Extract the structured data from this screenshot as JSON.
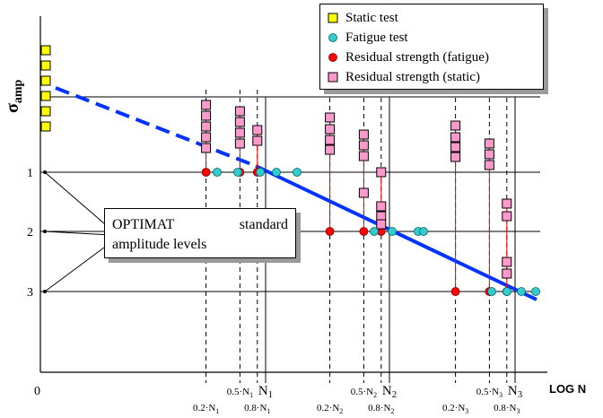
{
  "chart_data": {
    "type": "scatter",
    "title": "",
    "xlabel": "LOG N",
    "ylabel": "σamp",
    "ylabel_main": "σ",
    "ylabel_sub": "amp",
    "origin_label": "0",
    "x_scale": "log",
    "y_axis_levels": [
      {
        "label": "1",
        "level": 1
      },
      {
        "label": "2",
        "level": 2
      },
      {
        "label": "3",
        "level": 3
      }
    ],
    "x_ticks": [
      {
        "main": "0.2·N",
        "sub": "1",
        "group": 1,
        "fraction": 0.2,
        "style": "dashed"
      },
      {
        "main": "0.5·N",
        "sub": "1",
        "group": 1,
        "fraction": 0.5,
        "style": "dashed"
      },
      {
        "main": "0.8·N",
        "sub": "1",
        "group": 1,
        "fraction": 0.8,
        "style": "dashed"
      },
      {
        "main": "N",
        "sub": "1",
        "group": 1,
        "fraction": 1.0,
        "style": "solid"
      },
      {
        "main": "0.2·N",
        "sub": "2",
        "group": 2,
        "fraction": 0.2,
        "style": "dashed"
      },
      {
        "main": "0.5·N",
        "sub": "2",
        "group": 2,
        "fraction": 0.5,
        "style": "dashed"
      },
      {
        "main": "0.8·N",
        "sub": "2",
        "group": 2,
        "fraction": 0.8,
        "style": "dashed"
      },
      {
        "main": "N",
        "sub": "2",
        "group": 2,
        "fraction": 1.0,
        "style": "solid"
      },
      {
        "main": "0.2·N",
        "sub": "3",
        "group": 3,
        "fraction": 0.2,
        "style": "dashed"
      },
      {
        "main": "0.5·N",
        "sub": "3",
        "group": 3,
        "fraction": 0.5,
        "style": "dashed"
      },
      {
        "main": "0.8·N",
        "sub": "3",
        "group": 3,
        "fraction": 0.8,
        "style": "dashed"
      },
      {
        "main": "N",
        "sub": "3",
        "group": 3,
        "fraction": 1.0,
        "style": "solid"
      }
    ],
    "series": [
      {
        "name": "Static test",
        "marker": "square",
        "color": "#ffff00"
      },
      {
        "name": "Fatigue test",
        "marker": "circle",
        "color": "#33cccc"
      },
      {
        "name": "Residual strength (fatigue)",
        "marker": "circle",
        "color": "#ff0000"
      },
      {
        "name": "Residual strength (static)",
        "marker": "square",
        "color": "#ff99cc"
      }
    ],
    "sn_line_color": "#0033ff",
    "grid": false,
    "legend": "top-right",
    "annotation": {
      "line1_left": "OPTIMAT",
      "line1_right": "standard",
      "line2": "amplitude levels"
    }
  }
}
